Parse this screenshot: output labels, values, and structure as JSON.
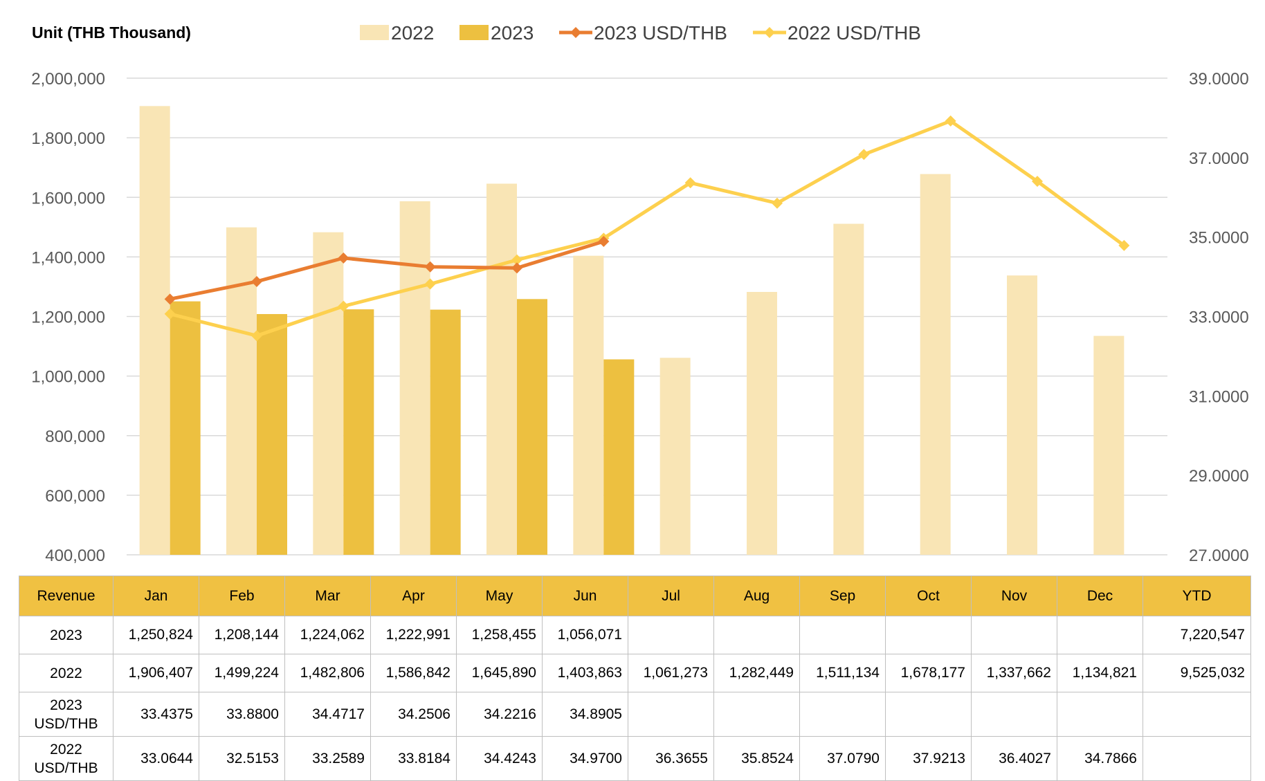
{
  "unit_label": "Unit (THB  Thousand)",
  "colors": {
    "bar_2022": "#f9e5b5",
    "bar_2023": "#edc040",
    "line_2023": "#e97d31",
    "line_2022": "#fdd04e",
    "grid": "#d9d9d9",
    "table_header": "#f0c142"
  },
  "chart_data": {
    "type": "bar",
    "categories": [
      "Jan",
      "Feb",
      "Mar",
      "Apr",
      "May",
      "Jun",
      "Jul",
      "Aug",
      "Sep",
      "Oct",
      "Nov",
      "Dec"
    ],
    "series": [
      {
        "name": "2022",
        "type": "bar",
        "axis": "left",
        "values": [
          1906407,
          1499224,
          1482806,
          1586842,
          1645890,
          1403863,
          1061273,
          1282449,
          1511134,
          1678177,
          1337662,
          1134821
        ]
      },
      {
        "name": "2023",
        "type": "bar",
        "axis": "left",
        "values": [
          1250824,
          1208144,
          1224062,
          1222991,
          1258455,
          1056071,
          null,
          null,
          null,
          null,
          null,
          null
        ]
      },
      {
        "name": "2023 USD/THB",
        "type": "line",
        "axis": "right",
        "values": [
          33.4375,
          33.88,
          34.4717,
          34.2506,
          34.2216,
          34.8905,
          null,
          null,
          null,
          null,
          null,
          null
        ]
      },
      {
        "name": "2022 USD/THB",
        "type": "line",
        "axis": "right",
        "values": [
          33.0644,
          32.5153,
          33.2589,
          33.8184,
          34.4243,
          34.97,
          36.3655,
          35.8524,
          37.079,
          37.9213,
          36.4027,
          34.7866
        ]
      }
    ],
    "ylim": [
      400000,
      2000000
    ],
    "y2lim": [
      27,
      39
    ],
    "yticks": [
      "400,000",
      "600,000",
      "800,000",
      "1,000,000",
      "1,200,000",
      "1,400,000",
      "1,600,000",
      "1,800,000",
      "2,000,000"
    ],
    "y2ticks": [
      "27.0000",
      "29.0000",
      "31.0000",
      "33.0000",
      "35.0000",
      "37.0000",
      "39.0000"
    ],
    "grid": true,
    "legend_position": "top"
  },
  "table": {
    "headers": [
      "Revenue",
      "Jan",
      "Feb",
      "Mar",
      "Apr",
      "May",
      "Jun",
      "Jul",
      "Aug",
      "Sep",
      "Oct",
      "Nov",
      "Dec",
      "YTD"
    ],
    "rows": [
      {
        "label": "2023",
        "cells": [
          "1,250,824",
          "1,208,144",
          "1,224,062",
          "1,222,991",
          "1,258,455",
          "1,056,071",
          "",
          "",
          "",
          "",
          "",
          "",
          "7,220,547"
        ]
      },
      {
        "label": "2022",
        "cells": [
          "1,906,407",
          "1,499,224",
          "1,482,806",
          "1,586,842",
          "1,645,890",
          "1,403,863",
          "1,061,273",
          "1,282,449",
          "1,511,134",
          "1,678,177",
          "1,337,662",
          "1,134,821",
          "9,525,032"
        ]
      },
      {
        "label": "2023\nUSD/THB",
        "cells": [
          "33.4375",
          "33.8800",
          "34.4717",
          "34.2506",
          "34.2216",
          "34.8905",
          "",
          "",
          "",
          "",
          "",
          "",
          ""
        ]
      },
      {
        "label": "2022\nUSD/THB",
        "cells": [
          "33.0644",
          "32.5153",
          "33.2589",
          "33.8184",
          "34.4243",
          "34.9700",
          "36.3655",
          "35.8524",
          "37.0790",
          "37.9213",
          "36.4027",
          "34.7866",
          ""
        ]
      }
    ]
  }
}
